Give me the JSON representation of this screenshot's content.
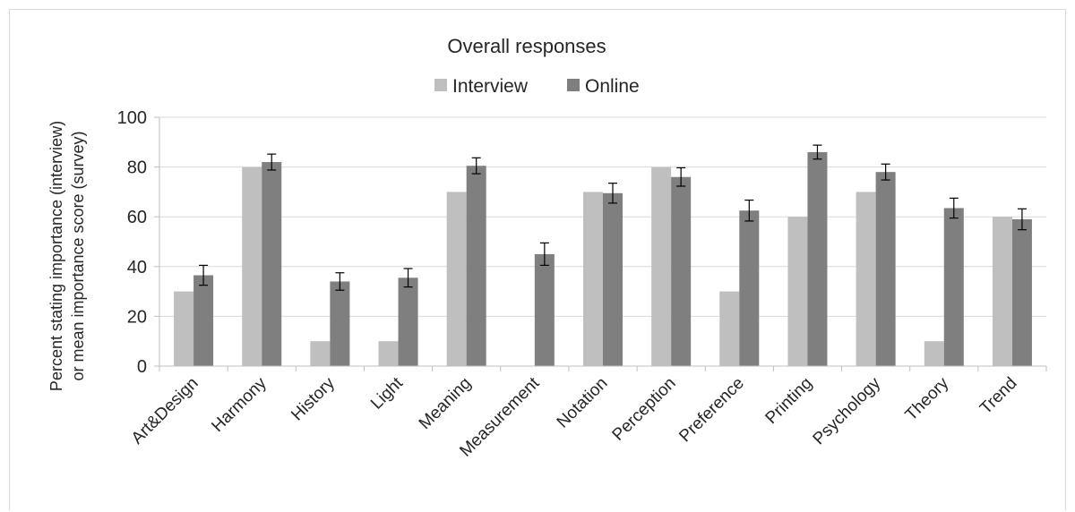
{
  "chart_data": {
    "type": "bar",
    "title": "Overall responses",
    "ylabel_lines": [
      "Percent stating importance (interview)",
      "or mean importance score (survey)"
    ],
    "xlabel": "",
    "ylim": [
      0,
      100
    ],
    "yticks": [
      0,
      20,
      40,
      60,
      80,
      100
    ],
    "grid": true,
    "legend_position": "top",
    "categories": [
      "Art&Design",
      "Harmony",
      "History",
      "Light",
      "Meaning",
      "Measurement",
      "Notation",
      "Perception",
      "Preference",
      "Printing",
      "Psychology",
      "Theory",
      "Trend"
    ],
    "series": [
      {
        "name": "Interview",
        "color": "#bfbfbf",
        "values": [
          30,
          80,
          10,
          10,
          70,
          0,
          70,
          80,
          30,
          60,
          70,
          10,
          60
        ]
      },
      {
        "name": "Online",
        "color": "#7f7f7f",
        "values": [
          36.5,
          82,
          34,
          35.5,
          80.5,
          45,
          69.5,
          76,
          62.5,
          86,
          78,
          63.5,
          59
        ],
        "error": [
          4,
          3.2,
          3.5,
          3.7,
          3.2,
          4.5,
          4,
          3.7,
          4.2,
          2.8,
          3.2,
          4,
          4.2
        ]
      }
    ]
  }
}
